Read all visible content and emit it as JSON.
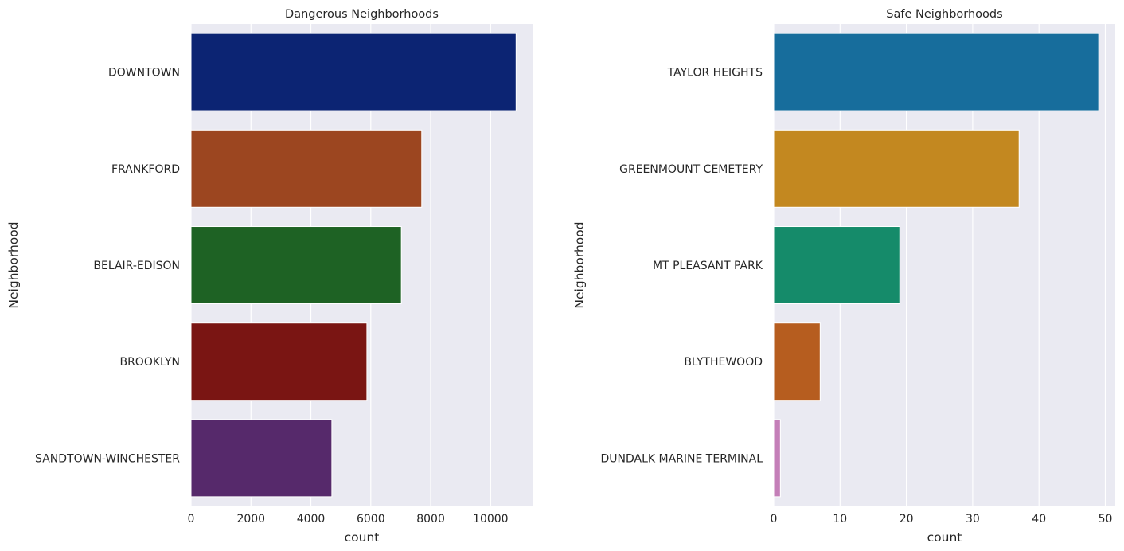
{
  "chart_data": [
    {
      "type": "bar",
      "orientation": "horizontal",
      "title": "Dangerous Neighborhoods",
      "xlabel": "count",
      "ylabel": "Neighborhood",
      "xlim": [
        0,
        11400
      ],
      "xticks": [
        0,
        2000,
        4000,
        6000,
        8000,
        10000
      ],
      "grid": true,
      "categories": [
        "DOWNTOWN",
        "FRANKFORD",
        "BELAIR-EDISON",
        "BROOKLYN",
        "SANDTOWN-WINCHESTER"
      ],
      "values": [
        10850,
        7700,
        7020,
        5870,
        4700
      ],
      "colors": [
        "#0c2473",
        "#9c4620",
        "#1e6224",
        "#7a1513",
        "#56296b"
      ]
    },
    {
      "type": "bar",
      "orientation": "horizontal",
      "title": "Safe Neighborhoods",
      "xlabel": "count",
      "ylabel": "Neighborhood",
      "xlim": [
        0,
        51.5
      ],
      "xticks": [
        0,
        10,
        20,
        30,
        40,
        50
      ],
      "grid": true,
      "categories": [
        "TAYLOR HEIGHTS",
        "GREENMOUNT CEMETERY",
        "MT PLEASANT PARK",
        "BLYTHEWOOD",
        "DUNDALK MARINE TERMINAL"
      ],
      "values": [
        49,
        37,
        19,
        7,
        1
      ],
      "colors": [
        "#176d9c",
        "#c38820",
        "#158b6a",
        "#b65d1f",
        "#c47fb8"
      ]
    }
  ]
}
